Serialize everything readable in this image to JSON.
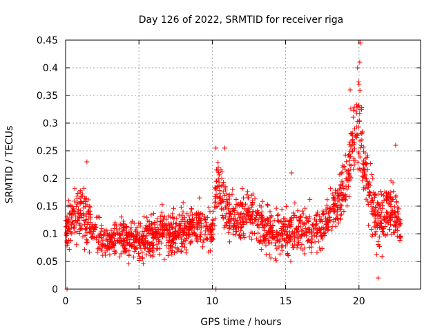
{
  "chart_data": {
    "type": "scatter",
    "title": "Day 126 of 2022, SRMTID for receiver riga",
    "xlabel": "GPS time / hours",
    "ylabel": "SRMTID / TECUs",
    "xlim": [
      0,
      24.2
    ],
    "ylim": [
      0,
      0.45
    ],
    "grid": true,
    "marker": "+",
    "color": "#ff0000",
    "xticks": [
      0,
      5,
      10,
      15,
      20
    ],
    "xtick_labels": [
      "0",
      "5",
      "10",
      "15",
      "20"
    ],
    "yticks": [
      0,
      0.05,
      0.1,
      0.15,
      0.2,
      0.25,
      0.3,
      0.35,
      0.4,
      0.45
    ],
    "ytick_labels": [
      "0",
      "0.05",
      "0.1",
      "0.15",
      "0.2",
      "0.25",
      "0.3",
      "0.35",
      "0.4",
      "0.45"
    ],
    "series": [
      {
        "name": "SRMTID",
        "profile": [
          {
            "x": 0.0,
            "y": 0.115,
            "spread": 0.03
          },
          {
            "x": 0.5,
            "y": 0.12,
            "spread": 0.04
          },
          {
            "x": 1.0,
            "y": 0.14,
            "spread": 0.045
          },
          {
            "x": 1.5,
            "y": 0.125,
            "spread": 0.05
          },
          {
            "x": 2.0,
            "y": 0.1,
            "spread": 0.03
          },
          {
            "x": 3.0,
            "y": 0.085,
            "spread": 0.028
          },
          {
            "x": 4.0,
            "y": 0.09,
            "spread": 0.03
          },
          {
            "x": 5.0,
            "y": 0.085,
            "spread": 0.03
          },
          {
            "x": 6.0,
            "y": 0.1,
            "spread": 0.03
          },
          {
            "x": 7.0,
            "y": 0.1,
            "spread": 0.035
          },
          {
            "x": 8.0,
            "y": 0.105,
            "spread": 0.035
          },
          {
            "x": 9.0,
            "y": 0.12,
            "spread": 0.035
          },
          {
            "x": 10.0,
            "y": 0.1,
            "spread": 0.03
          },
          {
            "x": 10.3,
            "y": 0.19,
            "spread": 0.04
          },
          {
            "x": 10.8,
            "y": 0.15,
            "spread": 0.04
          },
          {
            "x": 11.5,
            "y": 0.12,
            "spread": 0.035
          },
          {
            "x": 12.5,
            "y": 0.14,
            "spread": 0.04
          },
          {
            "x": 13.5,
            "y": 0.11,
            "spread": 0.04
          },
          {
            "x": 14.5,
            "y": 0.1,
            "spread": 0.04
          },
          {
            "x": 15.5,
            "y": 0.1,
            "spread": 0.035
          },
          {
            "x": 16.5,
            "y": 0.11,
            "spread": 0.035
          },
          {
            "x": 17.5,
            "y": 0.11,
            "spread": 0.03
          },
          {
            "x": 18.0,
            "y": 0.14,
            "spread": 0.03
          },
          {
            "x": 18.5,
            "y": 0.15,
            "spread": 0.04
          },
          {
            "x": 19.0,
            "y": 0.19,
            "spread": 0.05
          },
          {
            "x": 19.6,
            "y": 0.27,
            "spread": 0.06
          },
          {
            "x": 20.0,
            "y": 0.3,
            "spread": 0.08
          },
          {
            "x": 20.4,
            "y": 0.22,
            "spread": 0.06
          },
          {
            "x": 20.8,
            "y": 0.17,
            "spread": 0.05
          },
          {
            "x": 21.2,
            "y": 0.12,
            "spread": 0.05
          },
          {
            "x": 21.6,
            "y": 0.13,
            "spread": 0.05
          },
          {
            "x": 22.0,
            "y": 0.15,
            "spread": 0.05
          },
          {
            "x": 22.5,
            "y": 0.13,
            "spread": 0.04
          },
          {
            "x": 22.8,
            "y": 0.11,
            "spread": 0.03
          }
        ],
        "notable_points": [
          {
            "x": 0.1,
            "y": 0.0
          },
          {
            "x": 10.25,
            "y": 0.0
          },
          {
            "x": 1.45,
            "y": 0.23
          },
          {
            "x": 10.25,
            "y": 0.255
          },
          {
            "x": 10.85,
            "y": 0.255
          },
          {
            "x": 19.4,
            "y": 0.36
          },
          {
            "x": 19.9,
            "y": 0.4
          },
          {
            "x": 20.05,
            "y": 0.41
          },
          {
            "x": 20.1,
            "y": 0.445
          },
          {
            "x": 20.0,
            "y": 0.37
          },
          {
            "x": 22.5,
            "y": 0.26
          },
          {
            "x": 21.3,
            "y": 0.02
          },
          {
            "x": 15.4,
            "y": 0.21
          }
        ],
        "x_range": [
          0.0,
          22.85
        ],
        "point_count": 1900
      }
    ]
  }
}
